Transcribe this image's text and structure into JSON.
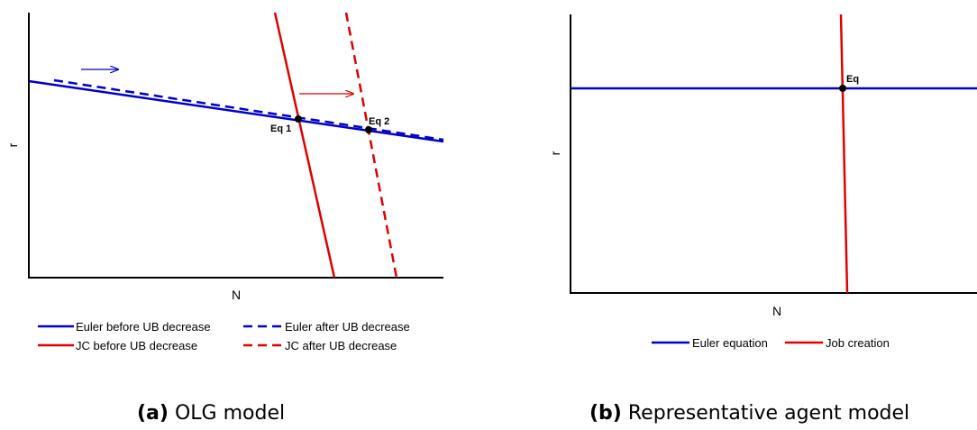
{
  "panel_a": {
    "y_axis_label": "r",
    "x_axis_label": "N",
    "eq1_label": "Eq 1",
    "eq2_label": "Eq 2",
    "legend": {
      "euler_before": "Euler before UB decrease",
      "euler_after": "Euler after UB decrease",
      "jc_before": "JC before UB decrease",
      "jc_after": "JC after UB decrease"
    },
    "caption_tag": "(a)",
    "caption_text": "OLG model"
  },
  "panel_b": {
    "y_axis_label": "r",
    "x_axis_label": "N",
    "eq_label": "Eq",
    "legend": {
      "euler": "Euler equation",
      "job_creation": "Job creation"
    },
    "caption_tag": "(b)",
    "caption_text": "Representative agent model"
  },
  "colors": {
    "euler": "#0000cc",
    "job_creation": "#e00000",
    "axis": "#000000"
  }
}
